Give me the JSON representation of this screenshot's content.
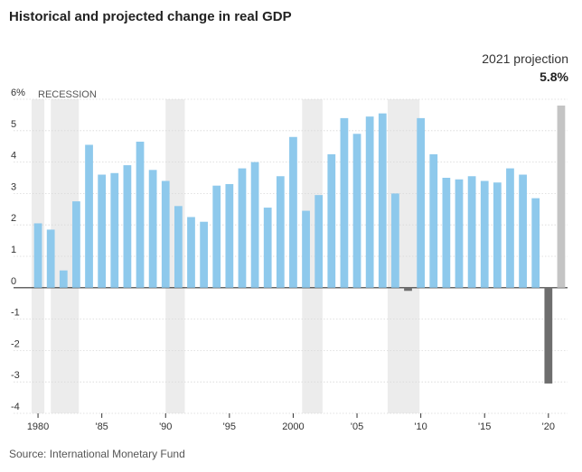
{
  "title": "Historical and projected change in real GDP",
  "source": "Source: International Monetary Fund",
  "chart_data": {
    "type": "bar",
    "title": "Historical and projected change in real GDP",
    "xlabel": "",
    "ylabel": "",
    "unit": "%",
    "ylim": [
      -4,
      6
    ],
    "y_ticks": [
      "6%",
      "5",
      "4",
      "3",
      "2",
      "1",
      "0",
      "-1",
      "-2",
      "-3",
      "-4"
    ],
    "y_tick_values": [
      6,
      5,
      4,
      3,
      2,
      1,
      0,
      -1,
      -2,
      -3,
      -4
    ],
    "x_ticks": [
      "1980",
      "'85",
      "'90",
      "'95",
      "2000",
      "'05",
      "'10",
      "'15",
      "'20"
    ],
    "x_tick_years": [
      1980,
      1985,
      1990,
      1995,
      2000,
      2005,
      2010,
      2015,
      2020
    ],
    "years": [
      1980,
      1981,
      1982,
      1983,
      1984,
      1985,
      1986,
      1987,
      1988,
      1989,
      1990,
      1991,
      1992,
      1993,
      1994,
      1995,
      1996,
      1997,
      1998,
      1999,
      2000,
      2001,
      2002,
      2003,
      2004,
      2005,
      2006,
      2007,
      2008,
      2009,
      2010,
      2011,
      2012,
      2013,
      2014,
      2015,
      2016,
      2017,
      2018,
      2019,
      2020,
      2021
    ],
    "values": [
      2.05,
      1.85,
      0.55,
      2.75,
      4.55,
      3.6,
      3.65,
      3.9,
      4.65,
      3.75,
      3.4,
      2.6,
      2.25,
      2.1,
      3.25,
      3.3,
      3.8,
      4.0,
      2.55,
      3.55,
      4.8,
      2.45,
      2.95,
      4.25,
      5.4,
      4.9,
      5.45,
      5.55,
      3.0,
      -0.1,
      5.4,
      4.25,
      3.5,
      3.45,
      3.55,
      3.4,
      3.35,
      3.8,
      3.6,
      2.85,
      -3.05,
      5.8
    ],
    "recessions": [
      [
        1980,
        1980
      ],
      [
        1981.5,
        1982.7
      ],
      [
        1990.5,
        1991.0
      ],
      [
        2001.2,
        2001.8
      ],
      [
        2007.9,
        2009.4
      ]
    ],
    "series_colors": {
      "historical": "#8ec9ec",
      "negative": "#6e6e6e",
      "projection": "#c4c4c4",
      "recession": "#ececec"
    },
    "legend_label": "RECESSION",
    "annotation": {
      "label": "2021 projection",
      "value": "5.8%"
    }
  }
}
